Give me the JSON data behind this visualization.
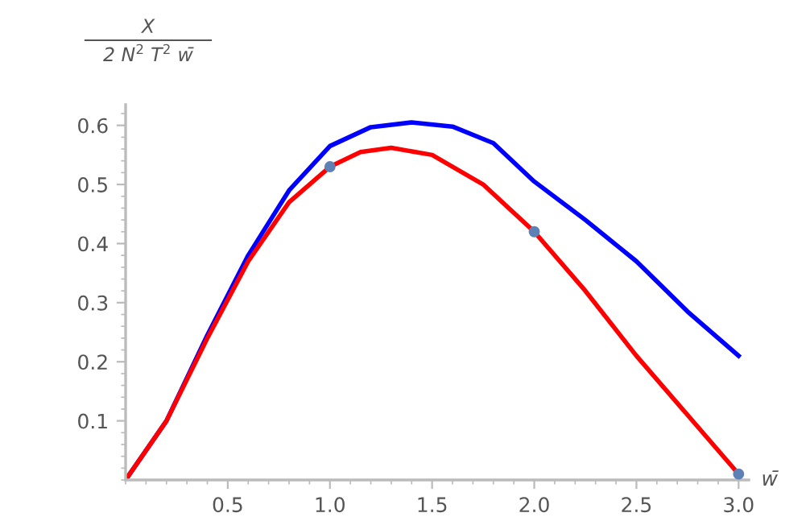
{
  "chart_data": {
    "type": "line",
    "xlabel": "w̄",
    "ylabel": "X\n2 N$^{2}$ T$^{2}$ w̄",
    "xlim": [
      0,
      3.05
    ],
    "ylim": [
      0,
      0.635
    ],
    "xticks": [
      0.5,
      {
        "value": 1,
        "label": "1.0"
      },
      1.5,
      {
        "value": 2,
        "label": "2.0"
      },
      2.5,
      {
        "value": 3,
        "label": "3.0"
      }
    ],
    "yticks": [
      0.1,
      0.2,
      0.3,
      0.4,
      0.5,
      0.6
    ],
    "grid": false,
    "legend": false,
    "series": [
      {
        "color": "#0000ff",
        "x": [
          0,
          0.2,
          0.4,
          0.6,
          0.8,
          1.0,
          1.2,
          1.4,
          1.6,
          1.8,
          2.0,
          2.25,
          2.5,
          2.75,
          3.0
        ],
        "values": [
          0,
          0.1,
          0.245,
          0.38,
          0.49,
          0.565,
          0.597,
          0.605,
          0.598,
          0.57,
          0.505,
          0.44,
          0.37,
          0.285,
          0.21
        ]
      },
      {
        "color": "#ff0000",
        "x": [
          0,
          0.2,
          0.4,
          0.6,
          0.8,
          1.0,
          1.15,
          1.3,
          1.5,
          1.75,
          2.0,
          2.25,
          2.5,
          2.75,
          3.0
        ],
        "values": [
          0,
          0.1,
          0.24,
          0.37,
          0.47,
          0.53,
          0.555,
          0.562,
          0.55,
          0.5,
          0.42,
          0.32,
          0.21,
          0.11,
          0.01
        ]
      },
      {
        "type": "scatter",
        "color": "#5e81b5",
        "marker": "circle",
        "x": [
          1.0,
          2.0,
          3.0
        ],
        "values": [
          0.53,
          0.42,
          0.01
        ]
      }
    ]
  }
}
